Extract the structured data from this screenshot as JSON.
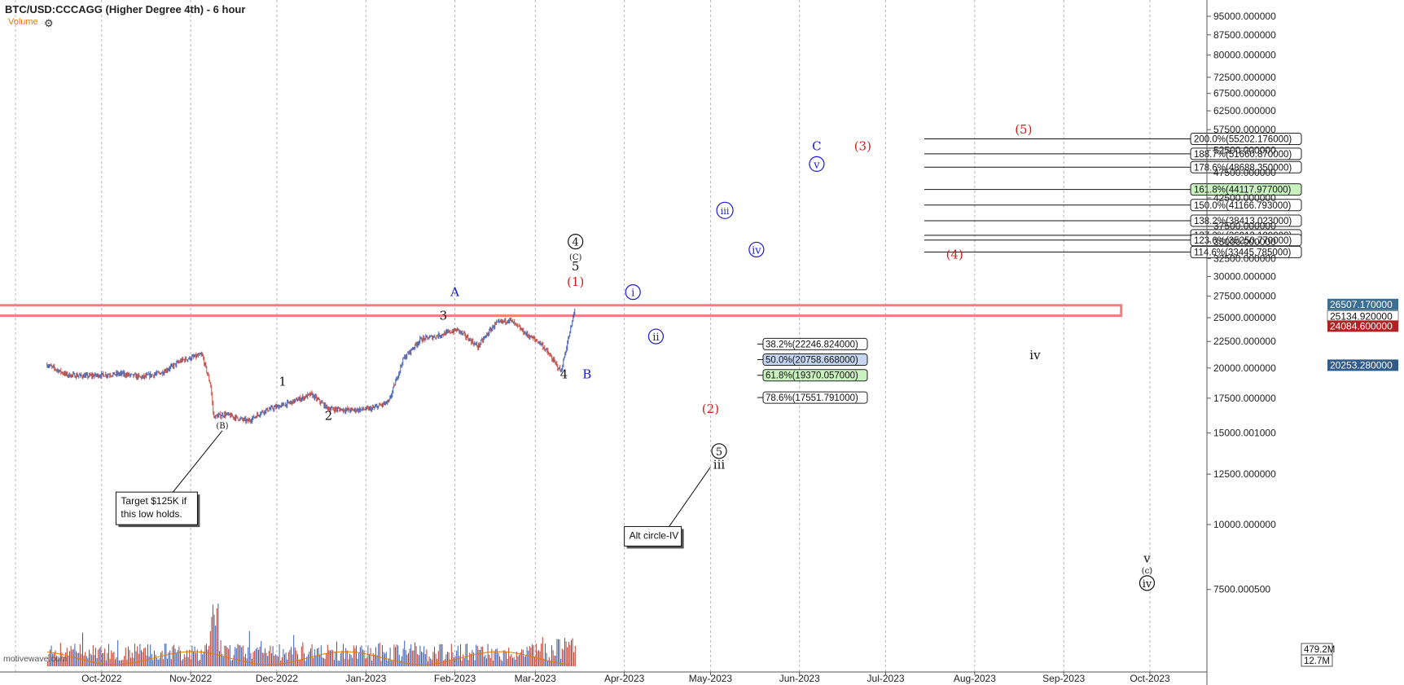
{
  "header": {
    "title": "BTC/USD:CCCAGG (Higher Degree 4th) - 6 hour",
    "volume_label": "Volume",
    "gear_icon": "gear-icon"
  },
  "watermark": "motivewave.com",
  "colors": {
    "up": "#2a4fa8",
    "down": "#c0392b",
    "blue_wave": "#1a1ad6",
    "red_wave": "#d61a1a",
    "black_wave": "#111111",
    "resistance_box": "#f08080",
    "price_label_blue": "#3c6e91",
    "price_label_red": "#b22222",
    "price_label_navy": "#2f5c8a",
    "fib_green": "#c9f2c0",
    "fib_blue": "#c6d6f2"
  },
  "chart_data": {
    "type": "candlestick",
    "title": "BTC/USD:CCCAGG (Higher Degree 4th) - 6 hour",
    "x_ticks": [
      "Oct-2022",
      "Nov-2022",
      "Dec-2022",
      "Jan-2023",
      "Feb-2023",
      "Mar-2023",
      "Apr-2023",
      "May-2023",
      "Jun-2023",
      "Jul-2023",
      "Aug-2023",
      "Sep-2023",
      "Oct-2023"
    ],
    "y_ticks": [
      "95000.000000",
      "87500.000000",
      "80000.000000",
      "72500.000000",
      "67500.000000",
      "62500.000000",
      "57500.000000",
      "52500.000000",
      "47500.000000",
      "42500.000000",
      "37500.000000",
      "35000.000000",
      "32500.000000",
      "30000.000000",
      "27500.000000",
      "25000.000000",
      "22500.000000",
      "20000.000000",
      "17500.000000",
      "15000.001000",
      "12500.000000",
      "10000.000000",
      "7500.000500"
    ],
    "y_scale": "log",
    "price_path": [
      [
        "2022-09-12",
        20300
      ],
      [
        "2022-09-19",
        19400
      ],
      [
        "2022-09-26",
        19300
      ],
      [
        "2022-10-01",
        19400
      ],
      [
        "2022-10-08",
        19500
      ],
      [
        "2022-10-15",
        19200
      ],
      [
        "2022-10-22",
        19600
      ],
      [
        "2022-10-29",
        20700
      ],
      [
        "2022-11-05",
        21200
      ],
      [
        "2022-11-08",
        18500
      ],
      [
        "2022-11-09",
        16100
      ],
      [
        "2022-11-13",
        16300
      ],
      [
        "2022-11-21",
        15800
      ],
      [
        "2022-11-26",
        16500
      ],
      [
        "2022-12-05",
        17100
      ],
      [
        "2022-12-13",
        17800
      ],
      [
        "2022-12-19",
        16700
      ],
      [
        "2022-12-27",
        16600
      ],
      [
        "2023-01-03",
        16700
      ],
      [
        "2023-01-09",
        17200
      ],
      [
        "2023-01-14",
        20800
      ],
      [
        "2023-01-20",
        22700
      ],
      [
        "2023-01-25",
        23000
      ],
      [
        "2023-02-02",
        23700
      ],
      [
        "2023-02-09",
        22000
      ],
      [
        "2023-02-15",
        24300
      ],
      [
        "2023-02-20",
        24800
      ],
      [
        "2023-02-26",
        23200
      ],
      [
        "2023-03-03",
        22300
      ],
      [
        "2023-03-10",
        19700
      ],
      [
        "2023-03-12",
        22100
      ],
      [
        "2023-03-14",
        24700
      ],
      [
        "2023-03-15",
        26507
      ]
    ],
    "volume_legend": [
      "479.2M",
      "12.7M"
    ],
    "price_labels": [
      {
        "value": "26507.170000",
        "kind": "last"
      },
      {
        "value": "25134.920000",
        "kind": "plain"
      },
      {
        "value": "24084.600000",
        "kind": "red"
      },
      {
        "value": "20253.280000",
        "kind": "navy"
      }
    ],
    "resistance_zone": {
      "from": 25134.92,
      "to": 26507.17,
      "start": "2022-09-12",
      "end": "2023-09-21"
    },
    "fib_levels_upper": [
      {
        "label": "200.0%(55202.176000)",
        "price": 55202.176,
        "style": "plain"
      },
      {
        "label": "188.7%(51660.870000)",
        "price": 51660.87,
        "style": "plain"
      },
      {
        "label": "178.6%(48688.350000)",
        "price": 48688.35,
        "style": "plain"
      },
      {
        "label": "161.8%(44117.977000)",
        "price": 44117.977,
        "style": "green"
      },
      {
        "label": "150.0%(41166.793000)",
        "price": 41166.793,
        "style": "plain"
      },
      {
        "label": "138.2%(38413.023000)",
        "price": 38413.023,
        "style": "plain"
      },
      {
        "label": "127.2%(36012.100000)",
        "price": 36012.1,
        "style": "plain"
      },
      {
        "label": "123.6%(35250.770000)",
        "price": 35250.77,
        "style": "plain"
      },
      {
        "label": "114.6%(33445.785000)",
        "price": 33445.785,
        "style": "plain"
      }
    ],
    "fib_levels_lower": [
      {
        "label": "38.2%(22246.824000)",
        "price": 22246.824,
        "style": "plain"
      },
      {
        "label": "50.0%(20758.668000)",
        "price": 20758.668,
        "style": "blue"
      },
      {
        "label": "61.8%(19370.057000)",
        "price": 19370.057,
        "style": "green"
      },
      {
        "label": "78.6%(17551.791000)",
        "price": 17551.791,
        "style": "plain"
      }
    ],
    "wave_labels": [
      {
        "text": "(B)",
        "date": "2022-11-12",
        "price": 15300,
        "color": "black",
        "circle": false,
        "size": "small"
      },
      {
        "text": "1",
        "date": "2022-12-03",
        "price": 18500,
        "color": "black",
        "circle": false,
        "size": "normal"
      },
      {
        "text": "2",
        "date": "2022-12-19",
        "price": 15900,
        "color": "black",
        "circle": false,
        "size": "normal"
      },
      {
        "text": "3",
        "date": "2023-01-28",
        "price": 24800,
        "color": "black",
        "circle": false,
        "size": "normal"
      },
      {
        "text": "A",
        "date": "2023-02-01",
        "price": 27500,
        "color": "blue",
        "circle": false,
        "size": "normal"
      },
      {
        "text": "4",
        "date": "2023-03-11",
        "price": 19100,
        "color": "black",
        "circle": false,
        "size": "normal"
      },
      {
        "text": "B",
        "date": "2023-03-19",
        "price": 19100,
        "color": "blue",
        "circle": false,
        "size": "normal"
      },
      {
        "text": "(1)",
        "date": "2023-03-15",
        "price": 28800,
        "color": "red",
        "circle": false,
        "size": "normal"
      },
      {
        "text": "5",
        "date": "2023-03-15",
        "price": 30800,
        "color": "black",
        "circle": false,
        "size": "normal"
      },
      {
        "text": "(C)",
        "date": "2023-03-15",
        "price": 32300,
        "color": "black",
        "circle": false,
        "size": "small"
      },
      {
        "text": "4",
        "date": "2023-03-15",
        "price": 34400,
        "color": "black",
        "circle": true,
        "size": "normal"
      },
      {
        "text": "i",
        "date": "2023-04-04",
        "price": 27500,
        "color": "blue",
        "circle": true,
        "size": "normal"
      },
      {
        "text": "ii",
        "date": "2023-04-12",
        "price": 22600,
        "color": "blue",
        "circle": true,
        "size": "normal"
      },
      {
        "text": "iii",
        "date": "2023-05-06",
        "price": 39500,
        "color": "blue",
        "circle": true,
        "size": "normal"
      },
      {
        "text": "iv",
        "date": "2023-05-17",
        "price": 33200,
        "color": "blue",
        "circle": true,
        "size": "normal"
      },
      {
        "text": "C",
        "date": "2023-06-07",
        "price": 52500,
        "color": "blue",
        "circle": false,
        "size": "normal"
      },
      {
        "text": "v",
        "date": "2023-06-07",
        "price": 48500,
        "color": "blue",
        "circle": true,
        "size": "normal"
      },
      {
        "text": "(2)",
        "date": "2023-05-01",
        "price": 16400,
        "color": "red",
        "circle": false,
        "size": "normal"
      },
      {
        "text": "5",
        "date": "2023-05-04",
        "price": 13600,
        "color": "black",
        "circle": true,
        "size": "normal"
      },
      {
        "text": "iii",
        "date": "2023-05-04",
        "price": 12800,
        "color": "black",
        "circle": false,
        "size": "normal"
      },
      {
        "text": "(3)",
        "date": "2023-06-23",
        "price": 52500,
        "color": "red",
        "circle": false,
        "size": "normal"
      },
      {
        "text": "(4)",
        "date": "2023-07-25",
        "price": 32500,
        "color": "red",
        "circle": false,
        "size": "normal"
      },
      {
        "text": "(5)",
        "date": "2023-08-18",
        "price": 56500,
        "color": "red",
        "circle": false,
        "size": "normal"
      },
      {
        "text": "iv",
        "date": "2023-08-22",
        "price": 20800,
        "color": "black",
        "circle": false,
        "size": "normal"
      },
      {
        "text": "v",
        "date": "2023-09-30",
        "price": 8450,
        "color": "black",
        "circle": false,
        "size": "normal"
      },
      {
        "text": "(c)",
        "date": "2023-09-30",
        "price": 8050,
        "color": "black",
        "circle": false,
        "size": "small"
      },
      {
        "text": "iv",
        "date": "2023-09-30",
        "price": 7580,
        "color": "black",
        "circle": true,
        "size": "normal"
      }
    ],
    "annotations": [
      {
        "text_lines": [
          "Target $125K if",
          "this low holds."
        ],
        "date": "2022-10-06",
        "price": 11300,
        "pointer_date": "2022-11-12",
        "pointer_price": 15150
      },
      {
        "text_lines": [
          "Alt circle-IV"
        ],
        "date": "2023-04-01",
        "price": 9700,
        "pointer_date": "2023-05-01",
        "pointer_price": 12900
      }
    ]
  }
}
